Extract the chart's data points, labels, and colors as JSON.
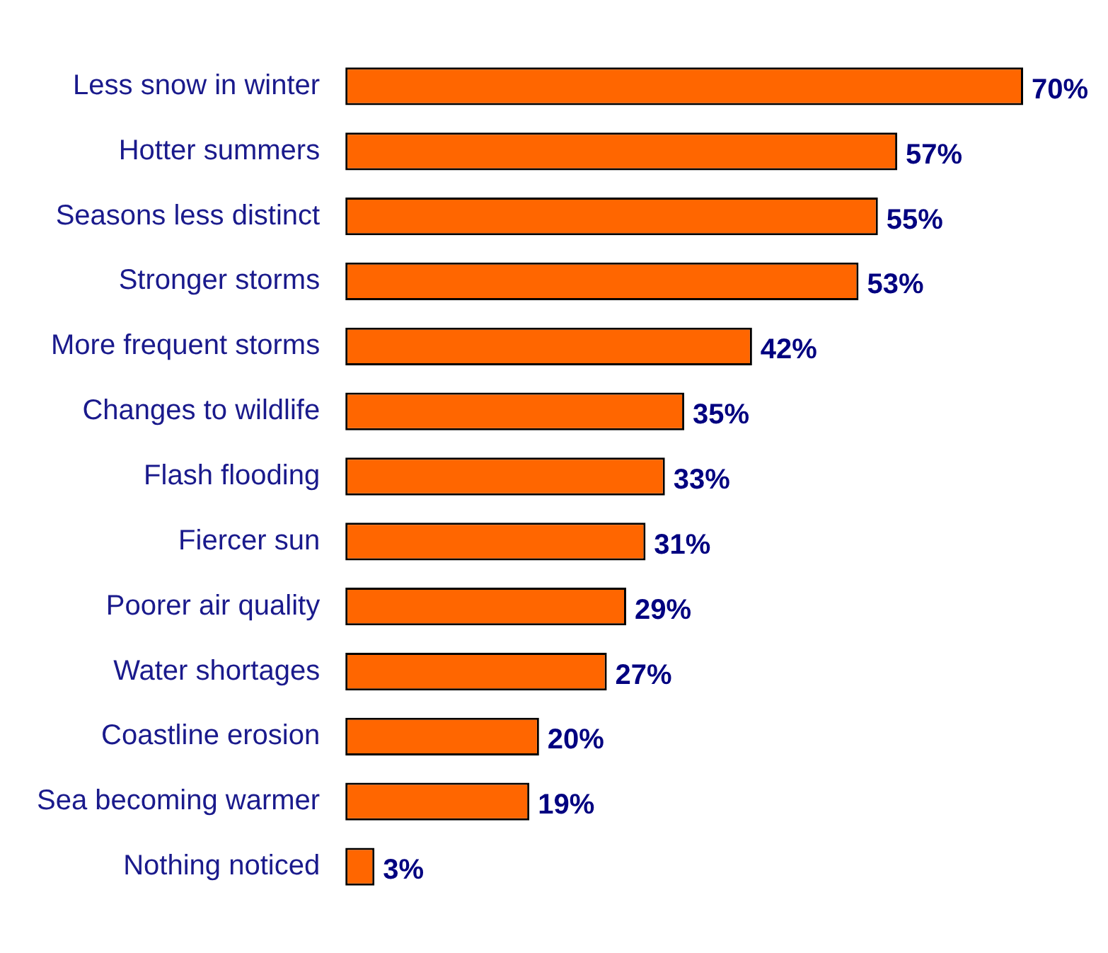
{
  "chart_data": {
    "type": "bar",
    "orientation": "horizontal",
    "categories": [
      "Less snow in winter",
      "Hotter summers",
      "Seasons less distinct",
      "Stronger storms",
      "More frequent storms",
      "Changes to wildlife",
      "Flash flooding",
      "Fiercer sun",
      "Poorer air quality",
      "Water shortages",
      "Coastline erosion",
      "Sea becoming warmer",
      "Nothing noticed"
    ],
    "values": [
      70,
      57,
      55,
      53,
      42,
      35,
      33,
      31,
      29,
      27,
      20,
      19,
      3
    ],
    "value_labels": [
      "70%",
      "57%",
      "55%",
      "53%",
      "42%",
      "35%",
      "33%",
      "31%",
      "29%",
      "27%",
      "20%",
      "19%",
      "3%"
    ],
    "color": "#ff6600"
  }
}
